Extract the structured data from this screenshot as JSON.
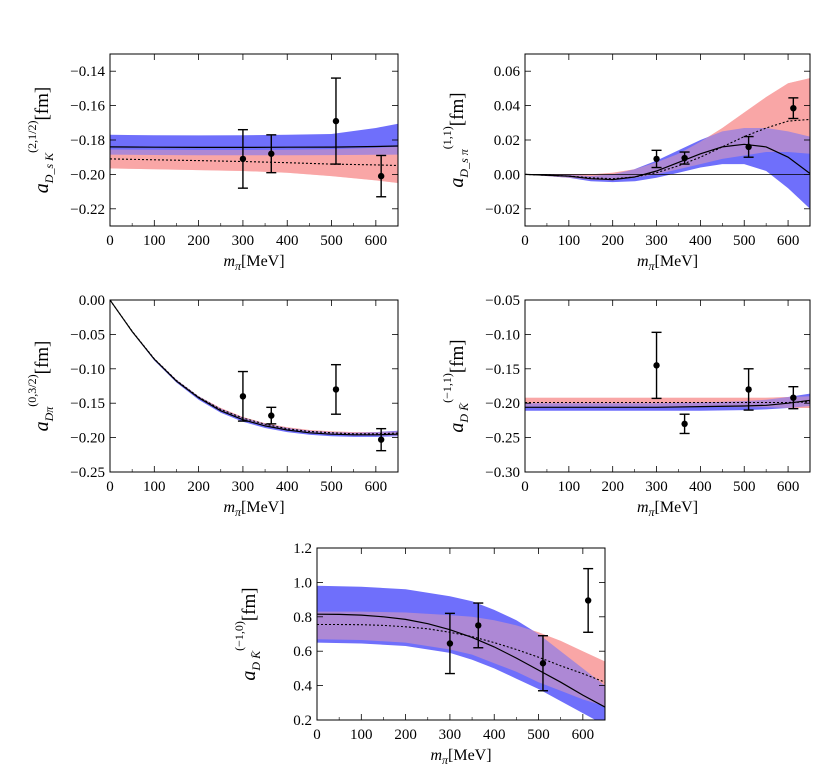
{
  "xlabel_symbol": "m",
  "xlabel_subscript": "π",
  "xlabel_unit": "[MeV]",
  "ylabel_unit": "[fm]",
  "colors": {
    "band_blue": "#6f6ffb",
    "band_red": "#f9a7a7",
    "band_overlap": "#8c45a4",
    "curve": "#000000"
  },
  "chart_data": [
    {
      "type": "line",
      "title": "",
      "ylabel_symbol": "a",
      "ylabel_subscript": "D_s K",
      "ylabel_superscript": "(2,1/2)",
      "xlim": [
        0,
        650
      ],
      "ylim": [
        -0.23,
        -0.13
      ],
      "xticks": [
        0,
        100,
        200,
        300,
        400,
        500,
        600
      ],
      "yticks": [
        -0.22,
        -0.2,
        -0.18,
        -0.16,
        -0.14
      ],
      "ytick_labels": [
        "-0.22",
        "-0.20",
        "-0.18",
        "-0.16",
        "-0.14"
      ],
      "zero_line": false,
      "band_blue": {
        "x": [
          0,
          100,
          200,
          300,
          400,
          500,
          600,
          650
        ],
        "lower": [
          -0.1885,
          -0.1887,
          -0.1889,
          -0.1889,
          -0.1889,
          -0.1888,
          -0.1886,
          -0.1885
        ],
        "upper": [
          -0.177,
          -0.1772,
          -0.1773,
          -0.1772,
          -0.177,
          -0.1765,
          -0.173,
          -0.1705
        ]
      },
      "band_red": {
        "x": [
          0,
          100,
          200,
          300,
          400,
          500,
          600,
          650
        ],
        "lower": [
          -0.1965,
          -0.197,
          -0.1975,
          -0.198,
          -0.199,
          -0.201,
          -0.2035,
          -0.205
        ],
        "upper": [
          -0.1855,
          -0.1857,
          -0.1858,
          -0.1858,
          -0.1857,
          -0.1853,
          -0.1845,
          -0.184
        ]
      },
      "solid": {
        "x": [
          0,
          100,
          200,
          300,
          400,
          500,
          600,
          650
        ],
        "y": [
          -0.184,
          -0.1842,
          -0.1843,
          -0.1843,
          -0.1842,
          -0.1841,
          -0.1838,
          -0.1835
        ]
      },
      "dotted": {
        "x": [
          0,
          100,
          200,
          300,
          400,
          500,
          600,
          650
        ],
        "y": [
          -0.191,
          -0.1915,
          -0.192,
          -0.1925,
          -0.1932,
          -0.194,
          -0.1945,
          -0.1948
        ]
      },
      "points": [
        {
          "x": 300,
          "y": -0.191,
          "err": 0.017
        },
        {
          "x": 364,
          "y": -0.188,
          "err": 0.011
        },
        {
          "x": 510,
          "y": -0.169,
          "err": 0.025
        },
        {
          "x": 612,
          "y": -0.201,
          "err": 0.012
        }
      ]
    },
    {
      "type": "line",
      "title": "",
      "ylabel_symbol": "a",
      "ylabel_subscript": "D_s π",
      "ylabel_superscript": "(1,1)",
      "xlim": [
        0,
        650
      ],
      "ylim": [
        -0.03,
        0.07
      ],
      "xticks": [
        0,
        100,
        200,
        300,
        400,
        500,
        600
      ],
      "yticks": [
        -0.02,
        0.0,
        0.02,
        0.04,
        0.06
      ],
      "ytick_labels": [
        "-0.02",
        "0.00",
        "0.02",
        "0.04",
        "0.06"
      ],
      "zero_line": true,
      "band_blue": {
        "x": [
          0,
          100,
          150,
          200,
          250,
          300,
          350,
          400,
          450,
          500,
          550,
          600,
          650
        ],
        "lower": [
          0.0,
          -0.002,
          -0.004,
          -0.0045,
          -0.004,
          -0.002,
          0.001,
          0.004,
          0.006,
          0.006,
          0.002,
          -0.008,
          -0.02
        ],
        "upper": [
          0.0,
          -0.0003,
          -0.001,
          0.0,
          0.003,
          0.008,
          0.014,
          0.02,
          0.025,
          0.027,
          0.027,
          0.025,
          0.022
        ]
      },
      "band_red": {
        "x": [
          0,
          100,
          150,
          200,
          250,
          300,
          350,
          400,
          450,
          500,
          550,
          600,
          650
        ],
        "lower": [
          0.0,
          -0.002,
          -0.003,
          -0.0035,
          -0.002,
          0.0,
          0.003,
          0.006,
          0.009,
          0.011,
          0.013,
          0.013,
          0.012
        ],
        "upper": [
          0.0,
          0.0,
          0.0,
          0.001,
          0.003,
          0.007,
          0.012,
          0.019,
          0.027,
          0.036,
          0.045,
          0.053,
          0.056
        ]
      },
      "solid": {
        "x": [
          0,
          100,
          150,
          200,
          250,
          300,
          350,
          400,
          450,
          500,
          550,
          600,
          650
        ],
        "y": [
          0.0,
          -0.001,
          -0.0025,
          -0.003,
          -0.0015,
          0.002,
          0.007,
          0.012,
          0.016,
          0.0175,
          0.016,
          0.01,
          0.0005
        ]
      },
      "dotted": {
        "x": [
          0,
          100,
          150,
          200,
          250,
          300,
          350,
          400,
          450,
          500,
          550,
          600,
          650
        ],
        "y": [
          0.0,
          -0.001,
          -0.002,
          -0.0025,
          -0.0015,
          0.001,
          0.005,
          0.01,
          0.016,
          0.022,
          0.027,
          0.031,
          0.032
        ]
      },
      "points": [
        {
          "x": 300,
          "y": 0.009,
          "err": 0.005
        },
        {
          "x": 364,
          "y": 0.0095,
          "err": 0.0035
        },
        {
          "x": 510,
          "y": 0.016,
          "err": 0.006
        },
        {
          "x": 612,
          "y": 0.0385,
          "err": 0.006
        }
      ]
    },
    {
      "type": "line",
      "title": "",
      "ylabel_symbol": "a",
      "ylabel_subscript": "Dπ",
      "ylabel_superscript": "(0,3/2)",
      "xlim": [
        0,
        650
      ],
      "ylim": [
        -0.25,
        0.0
      ],
      "xticks": [
        0,
        100,
        200,
        300,
        400,
        500,
        600
      ],
      "yticks": [
        -0.25,
        -0.2,
        -0.15,
        -0.1,
        -0.05,
        0.0
      ],
      "ytick_labels": [
        "-0.25",
        "-0.20",
        "-0.15",
        "-0.10",
        "-0.05",
        "0.00"
      ],
      "zero_line": false,
      "band_blue": {
        "x": [
          0,
          50,
          100,
          150,
          200,
          250,
          300,
          350,
          400,
          450,
          500,
          550,
          600,
          650
        ],
        "lower": [
          0.0,
          -0.047,
          -0.088,
          -0.12,
          -0.145,
          -0.164,
          -0.177,
          -0.186,
          -0.192,
          -0.196,
          -0.198,
          -0.199,
          -0.199,
          -0.198
        ],
        "upper": [
          0.0,
          -0.045,
          -0.085,
          -0.116,
          -0.14,
          -0.158,
          -0.171,
          -0.18,
          -0.186,
          -0.19,
          -0.192,
          -0.193,
          -0.192,
          -0.19
        ]
      },
      "band_red": {
        "x": [
          0,
          50,
          100,
          150,
          200,
          250,
          300,
          350,
          400,
          450,
          500,
          550,
          600,
          650
        ],
        "lower": [
          0.0,
          -0.046,
          -0.086,
          -0.118,
          -0.142,
          -0.16,
          -0.173,
          -0.182,
          -0.188,
          -0.192,
          -0.195,
          -0.197,
          -0.197,
          -0.197
        ],
        "upper": [
          0.0,
          -0.045,
          -0.085,
          -0.116,
          -0.14,
          -0.157,
          -0.17,
          -0.179,
          -0.185,
          -0.189,
          -0.191,
          -0.192,
          -0.192,
          -0.191
        ]
      },
      "solid": {
        "x": [
          0,
          50,
          100,
          150,
          200,
          250,
          300,
          350,
          400,
          450,
          500,
          550,
          600,
          650
        ],
        "y": [
          0.0,
          -0.046,
          -0.086,
          -0.118,
          -0.142,
          -0.161,
          -0.174,
          -0.183,
          -0.189,
          -0.193,
          -0.195,
          -0.196,
          -0.196,
          -0.195
        ]
      },
      "dotted": {
        "x": [
          0,
          50,
          100,
          150,
          200,
          250,
          300,
          350,
          400,
          450,
          500,
          550,
          600,
          650
        ],
        "y": [
          0.0,
          -0.0455,
          -0.0855,
          -0.117,
          -0.141,
          -0.159,
          -0.1715,
          -0.1805,
          -0.187,
          -0.191,
          -0.193,
          -0.1945,
          -0.1945,
          -0.1935
        ]
      },
      "points": [
        {
          "x": 300,
          "y": -0.14,
          "err": 0.036
        },
        {
          "x": 364,
          "y": -0.168,
          "err": 0.012
        },
        {
          "x": 510,
          "y": -0.13,
          "err": 0.036
        },
        {
          "x": 612,
          "y": -0.203,
          "err": 0.016
        }
      ]
    },
    {
      "type": "line",
      "title": "",
      "ylabel_symbol": "a",
      "ylabel_subscript": "D K̄",
      "ylabel_superscript": "(−1,1)",
      "xlim": [
        0,
        650
      ],
      "ylim": [
        -0.3,
        -0.05
      ],
      "xticks": [
        0,
        100,
        200,
        300,
        400,
        500,
        600
      ],
      "yticks": [
        -0.3,
        -0.25,
        -0.2,
        -0.15,
        -0.1,
        -0.05
      ],
      "ytick_labels": [
        "-0.30",
        "-0.25",
        "-0.20",
        "-0.15",
        "-0.10",
        "-0.05"
      ],
      "zero_line": false,
      "band_blue": {
        "x": [
          0,
          100,
          200,
          300,
          400,
          500,
          550,
          600,
          650
        ],
        "lower": [
          -0.211,
          -0.211,
          -0.211,
          -0.211,
          -0.211,
          -0.21,
          -0.209,
          -0.207,
          -0.204
        ],
        "upper": [
          -0.2,
          -0.2,
          -0.2,
          -0.2,
          -0.199,
          -0.197,
          -0.195,
          -0.191,
          -0.186
        ]
      },
      "band_red": {
        "x": [
          0,
          100,
          200,
          300,
          400,
          500,
          550,
          600,
          650
        ],
        "lower": [
          -0.205,
          -0.205,
          -0.205,
          -0.205,
          -0.205,
          -0.206,
          -0.206,
          -0.207,
          -0.207
        ],
        "upper": [
          -0.192,
          -0.192,
          -0.192,
          -0.192,
          -0.192,
          -0.192,
          -0.192,
          -0.191,
          -0.19
        ]
      },
      "solid": {
        "x": [
          0,
          100,
          200,
          300,
          400,
          500,
          550,
          600,
          650
        ],
        "y": [
          -0.206,
          -0.206,
          -0.206,
          -0.206,
          -0.205,
          -0.204,
          -0.203,
          -0.2,
          -0.196
        ]
      },
      "dotted": {
        "x": [
          0,
          100,
          200,
          300,
          400,
          500,
          550,
          600,
          650
        ],
        "y": [
          -0.199,
          -0.199,
          -0.199,
          -0.199,
          -0.199,
          -0.199,
          -0.199,
          -0.199,
          -0.198
        ]
      },
      "points": [
        {
          "x": 300,
          "y": -0.145,
          "err": 0.048
        },
        {
          "x": 364,
          "y": -0.23,
          "err": 0.014
        },
        {
          "x": 510,
          "y": -0.18,
          "err": 0.03
        },
        {
          "x": 612,
          "y": -0.192,
          "err": 0.016
        }
      ]
    },
    {
      "type": "line",
      "title": "",
      "ylabel_symbol": "a",
      "ylabel_subscript": "D K̄",
      "ylabel_superscript": "(−1,0)",
      "xlim": [
        0,
        650
      ],
      "ylim": [
        0.2,
        1.2
      ],
      "xticks": [
        0,
        100,
        200,
        300,
        400,
        500,
        600
      ],
      "yticks": [
        0.2,
        0.4,
        0.6,
        0.8,
        1.0,
        1.2
      ],
      "ytick_labels": [
        "0.2",
        "0.4",
        "0.6",
        "0.8",
        "1.0",
        "1.2"
      ],
      "zero_line": false,
      "band_blue": {
        "x": [
          0,
          100,
          200,
          300,
          350,
          400,
          450,
          500,
          550,
          600,
          650
        ],
        "lower": [
          0.65,
          0.645,
          0.63,
          0.59,
          0.55,
          0.5,
          0.44,
          0.38,
          0.31,
          0.24,
          0.17
        ],
        "upper": [
          0.98,
          0.975,
          0.96,
          0.92,
          0.89,
          0.84,
          0.78,
          0.7,
          0.6,
          0.5,
          0.4
        ]
      },
      "band_red": {
        "x": [
          0,
          100,
          200,
          300,
          350,
          400,
          450,
          500,
          550,
          600,
          650
        ],
        "lower": [
          0.67,
          0.665,
          0.65,
          0.61,
          0.58,
          0.53,
          0.48,
          0.42,
          0.37,
          0.32,
          0.28
        ],
        "upper": [
          0.83,
          0.83,
          0.825,
          0.81,
          0.8,
          0.78,
          0.75,
          0.71,
          0.66,
          0.6,
          0.54
        ]
      },
      "solid": {
        "x": [
          0,
          50,
          100,
          150,
          200,
          250,
          300,
          350,
          400,
          450,
          500,
          550,
          600,
          650
        ],
        "y": [
          0.815,
          0.814,
          0.81,
          0.8,
          0.785,
          0.76,
          0.725,
          0.68,
          0.625,
          0.56,
          0.49,
          0.42,
          0.345,
          0.275
        ]
      },
      "dotted": {
        "x": [
          0,
          50,
          100,
          150,
          200,
          250,
          300,
          350,
          400,
          450,
          500,
          550,
          600,
          650
        ],
        "y": [
          0.755,
          0.755,
          0.754,
          0.75,
          0.742,
          0.73,
          0.71,
          0.685,
          0.65,
          0.61,
          0.565,
          0.515,
          0.47,
          0.42
        ]
      },
      "points": [
        {
          "x": 300,
          "y": 0.645,
          "err": 0.175
        },
        {
          "x": 364,
          "y": 0.75,
          "err": 0.13
        },
        {
          "x": 510,
          "y": 0.53,
          "err": 0.16
        },
        {
          "x": 612,
          "y": 0.895,
          "err": 0.185
        }
      ]
    }
  ]
}
